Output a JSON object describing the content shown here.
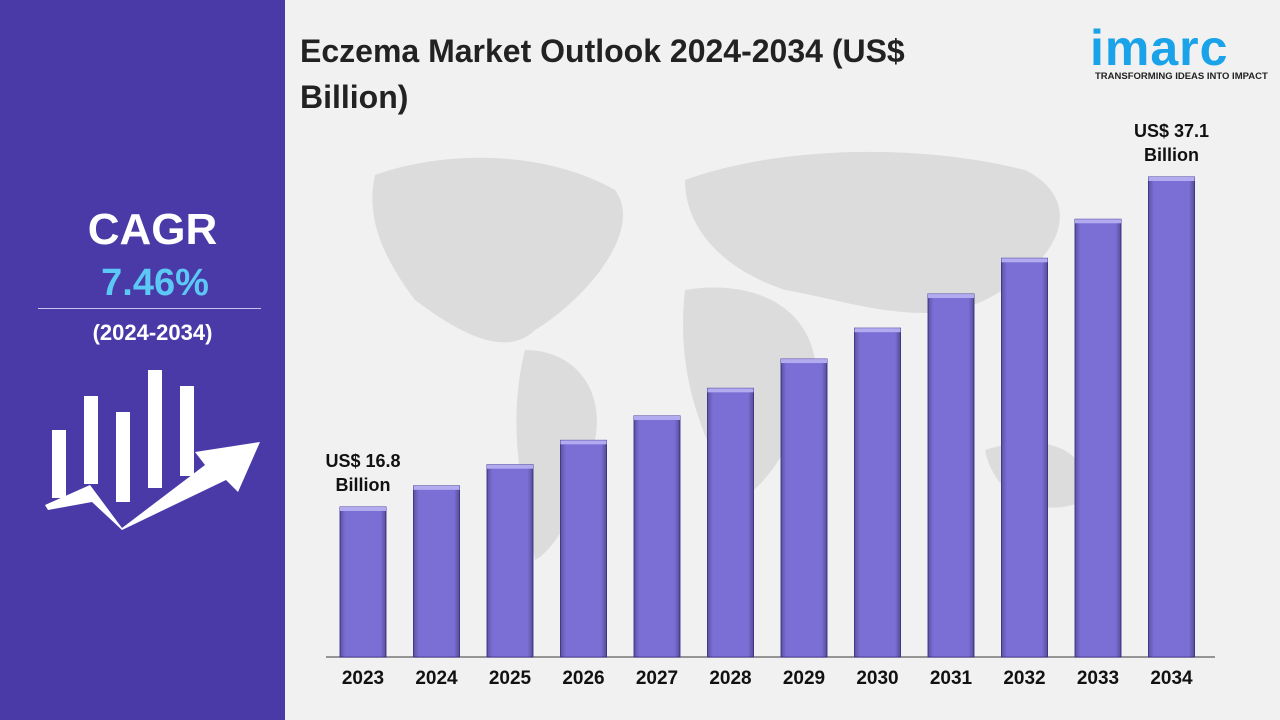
{
  "sidebar": {
    "cagr_label": "CAGR",
    "cagr_value": "7.46%",
    "period": "(2024-2034)"
  },
  "logo": {
    "name": "imarc",
    "tagline": "TRANSFORMING IDEAS INTO IMPACT"
  },
  "chart_data": {
    "type": "bar",
    "title": "Eczema Market Outlook 2024-2034 (US$ Billion)",
    "categories": [
      "2023",
      "2024",
      "2025",
      "2026",
      "2027",
      "2028",
      "2029",
      "2030",
      "2031",
      "2032",
      "2033",
      "2034"
    ],
    "values": [
      16.8,
      18.1,
      19.4,
      20.9,
      22.4,
      24.1,
      25.9,
      27.8,
      29.9,
      32.1,
      34.5,
      37.1
    ],
    "value_labels": [
      "US$ 16.8 Billion",
      null,
      null,
      null,
      null,
      null,
      null,
      null,
      null,
      null,
      null,
      "US$ 37.1 Billion"
    ],
    "color": "#7b6fd6"
  }
}
